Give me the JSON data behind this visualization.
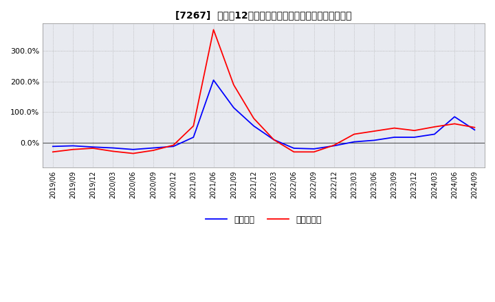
{
  "title": "[7267]  利益だ12か月移動合計の対前年同期増減率の推移",
  "legend_labels": [
    "経常利益",
    "当期純利益"
  ],
  "line_colors": [
    "#0000ff",
    "#ff0000"
  ],
  "background_color": "#ffffff",
  "plot_bg_color": "#e8eaf0",
  "grid_color": "#aaaaaa",
  "ylim": [
    -80,
    390
  ],
  "yticks": [
    0,
    100,
    200,
    300
  ],
  "ytick_labels": [
    "0.0%",
    "100.0%",
    "200.0%",
    "300.0%"
  ],
  "dates_operating": [
    "2019/06",
    "2019/09",
    "2019/12",
    "2020/03",
    "2020/06",
    "2020/09",
    "2020/12",
    "2021/03",
    "2021/06",
    "2021/09",
    "2021/12",
    "2022/03",
    "2022/06",
    "2022/09",
    "2022/12",
    "2023/03",
    "2023/06",
    "2023/09",
    "2023/12",
    "2024/03",
    "2024/06",
    "2024/09"
  ],
  "values_operating": [
    -12,
    -10,
    -14,
    -17,
    -22,
    -17,
    -12,
    18,
    205,
    115,
    55,
    10,
    -18,
    -20,
    -10,
    3,
    8,
    18,
    18,
    28,
    85,
    42
  ],
  "dates_net": [
    "2019/06",
    "2019/09",
    "2019/12",
    "2020/03",
    "2020/06",
    "2020/09",
    "2020/12",
    "2021/03",
    "2021/06",
    "2021/09",
    "2021/12",
    "2022/03",
    "2022/06",
    "2022/09",
    "2022/12",
    "2023/03",
    "2023/06",
    "2023/09",
    "2023/12",
    "2024/03",
    "2024/06",
    "2024/09"
  ],
  "values_net": [
    -30,
    -22,
    -18,
    -28,
    -35,
    -25,
    -8,
    55,
    370,
    190,
    80,
    10,
    -30,
    -30,
    -8,
    28,
    38,
    48,
    40,
    52,
    62,
    50
  ],
  "xtick_labels": [
    "2019/06",
    "2019/09",
    "2019/12",
    "2020/03",
    "2020/06",
    "2020/09",
    "2020/12",
    "2021/03",
    "2021/06",
    "2021/09",
    "2021/12",
    "2022/03",
    "2022/06",
    "2022/09",
    "2022/12",
    "2023/03",
    "2023/06",
    "2023/09",
    "2023/12",
    "2024/03",
    "2024/06",
    "2024/09"
  ]
}
